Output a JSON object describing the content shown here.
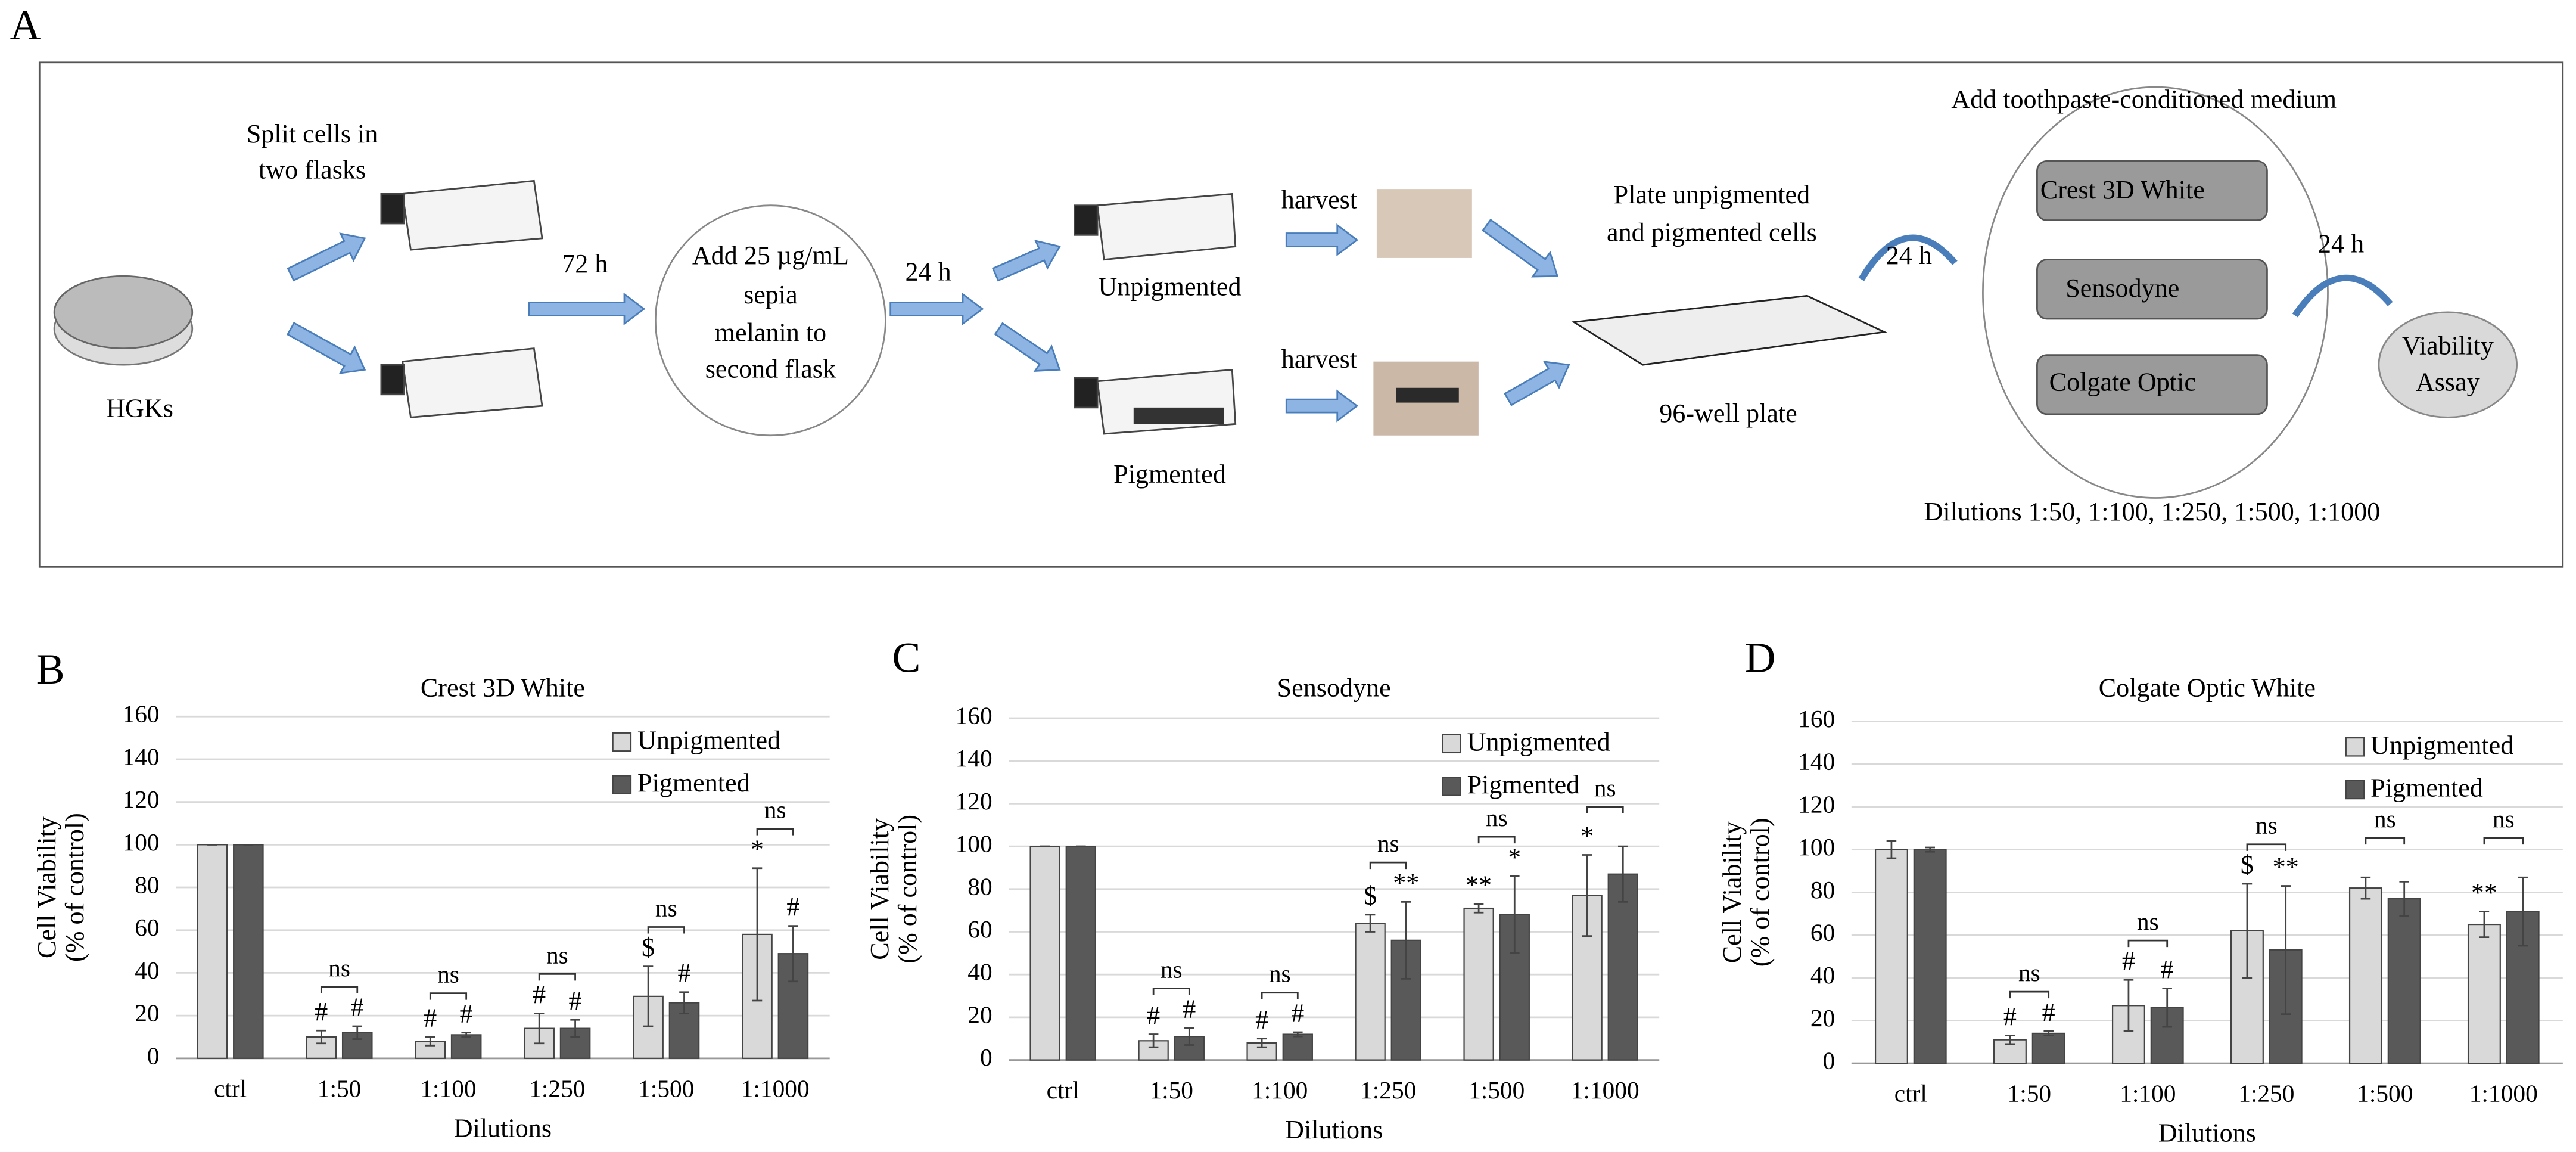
{
  "panel_label": "A",
  "diagram": {
    "split": [
      "Split cells in",
      "two flasks"
    ],
    "hgks": "HGKs",
    "time_1": "72 h",
    "melanin": [
      "Add 25 µg/mL",
      "sepia",
      "melanin to",
      "second flask"
    ],
    "time_2": "24 h",
    "unpigmented": "Unpigmented",
    "pigmented": "Pigmented",
    "harvest_1": "harvest",
    "harvest_2": "harvest",
    "plate": [
      "Plate unpigmented",
      "and pigmented cells"
    ],
    "plate_label": "96-well plate",
    "time_3": "24 h",
    "medium": "Add toothpaste-conditioned medium",
    "toothpastes": [
      "Crest 3D White",
      "Sensodyne",
      "Colgate Optic"
    ],
    "time_4": "24 h",
    "assay": [
      "Viability",
      "Assay"
    ],
    "dilutions": "Dilutions 1:50, 1:100, 1:250, 1:500, 1:1000"
  },
  "chart_data": [
    {
      "type": "bar",
      "panel_label": "B",
      "title": "Crest 3D White",
      "xlabel": "Dilutions",
      "ylabel": [
        "Cell Viability",
        "(% of control)"
      ],
      "categories": [
        "ctrl",
        "1:50",
        "1:100",
        "1:250",
        "1:500",
        "1:1000"
      ],
      "series": [
        {
          "name": "Unpigmented",
          "color": "#d9d9d9",
          "values": [
            100,
            10,
            8,
            14,
            29,
            58
          ],
          "errors": [
            0,
            3,
            2,
            7,
            14,
            31
          ],
          "significance": [
            null,
            "#",
            "#",
            "#",
            "$",
            "*"
          ]
        },
        {
          "name": "Pigmented",
          "color": "#595959",
          "values": [
            100,
            12,
            11,
            14,
            26,
            49
          ],
          "errors": [
            0,
            3,
            1,
            4,
            5,
            13
          ],
          "significance": [
            null,
            "#",
            "#",
            "#",
            "#",
            "#"
          ]
        }
      ],
      "comparison_labels": [
        null,
        "ns",
        "ns",
        "ns",
        "ns",
        "ns"
      ],
      "ylim": [
        0,
        160
      ],
      "yticks": [
        0,
        20,
        40,
        60,
        80,
        100,
        120,
        140,
        160
      ],
      "grid": true
    },
    {
      "type": "bar",
      "panel_label": "C",
      "title": "Sensodyne",
      "xlabel": "Dilutions",
      "ylabel": [
        "Cell Viability",
        "(% of control)"
      ],
      "categories": [
        "ctrl",
        "1:50",
        "1:100",
        "1:250",
        "1:500",
        "1:1000"
      ],
      "series": [
        {
          "name": "Unpigmented",
          "color": "#d9d9d9",
          "values": [
            100,
            9,
            8,
            64,
            71,
            77
          ],
          "errors": [
            0,
            3,
            2,
            4,
            2,
            19
          ],
          "significance": [
            null,
            "#",
            "#",
            "$",
            "**",
            "*"
          ]
        },
        {
          "name": "Pigmented",
          "color": "#595959",
          "values": [
            100,
            11,
            12,
            56,
            68,
            87
          ],
          "errors": [
            0,
            4,
            1,
            18,
            18,
            13
          ],
          "significance": [
            null,
            "#",
            "#",
            "**",
            "*",
            null
          ]
        }
      ],
      "comparison_labels": [
        null,
        "ns",
        "ns",
        "ns",
        "ns",
        "ns"
      ],
      "ylim": [
        0,
        160
      ],
      "yticks": [
        0,
        20,
        40,
        60,
        80,
        100,
        120,
        140,
        160
      ],
      "grid": true
    },
    {
      "type": "bar",
      "panel_label": "D",
      "title": "Colgate Optic White",
      "xlabel": "Dilutions",
      "ylabel": [
        "Cell Viability",
        "(% of control)"
      ],
      "categories": [
        "ctrl",
        "1:50",
        "1:100",
        "1:250",
        "1:500",
        "1:1000"
      ],
      "series": [
        {
          "name": "Unpigmented",
          "color": "#d9d9d9",
          "values": [
            100,
            11,
            27,
            62,
            82,
            65
          ],
          "errors": [
            4,
            2,
            12,
            22,
            5,
            6
          ],
          "significance": [
            null,
            "#",
            "#",
            "$",
            null,
            "**"
          ]
        },
        {
          "name": "Pigmented",
          "color": "#595959",
          "values": [
            100,
            14,
            26,
            53,
            77,
            71
          ],
          "errors": [
            1,
            1,
            9,
            30,
            8,
            16
          ],
          "significance": [
            null,
            "#",
            "#",
            "**",
            null,
            null
          ]
        }
      ],
      "comparison_labels": [
        null,
        "ns",
        "ns",
        "ns",
        "ns",
        "ns"
      ],
      "ylim": [
        0,
        160
      ],
      "yticks": [
        0,
        20,
        40,
        60,
        80,
        100,
        120,
        140,
        160
      ],
      "grid": true
    }
  ]
}
